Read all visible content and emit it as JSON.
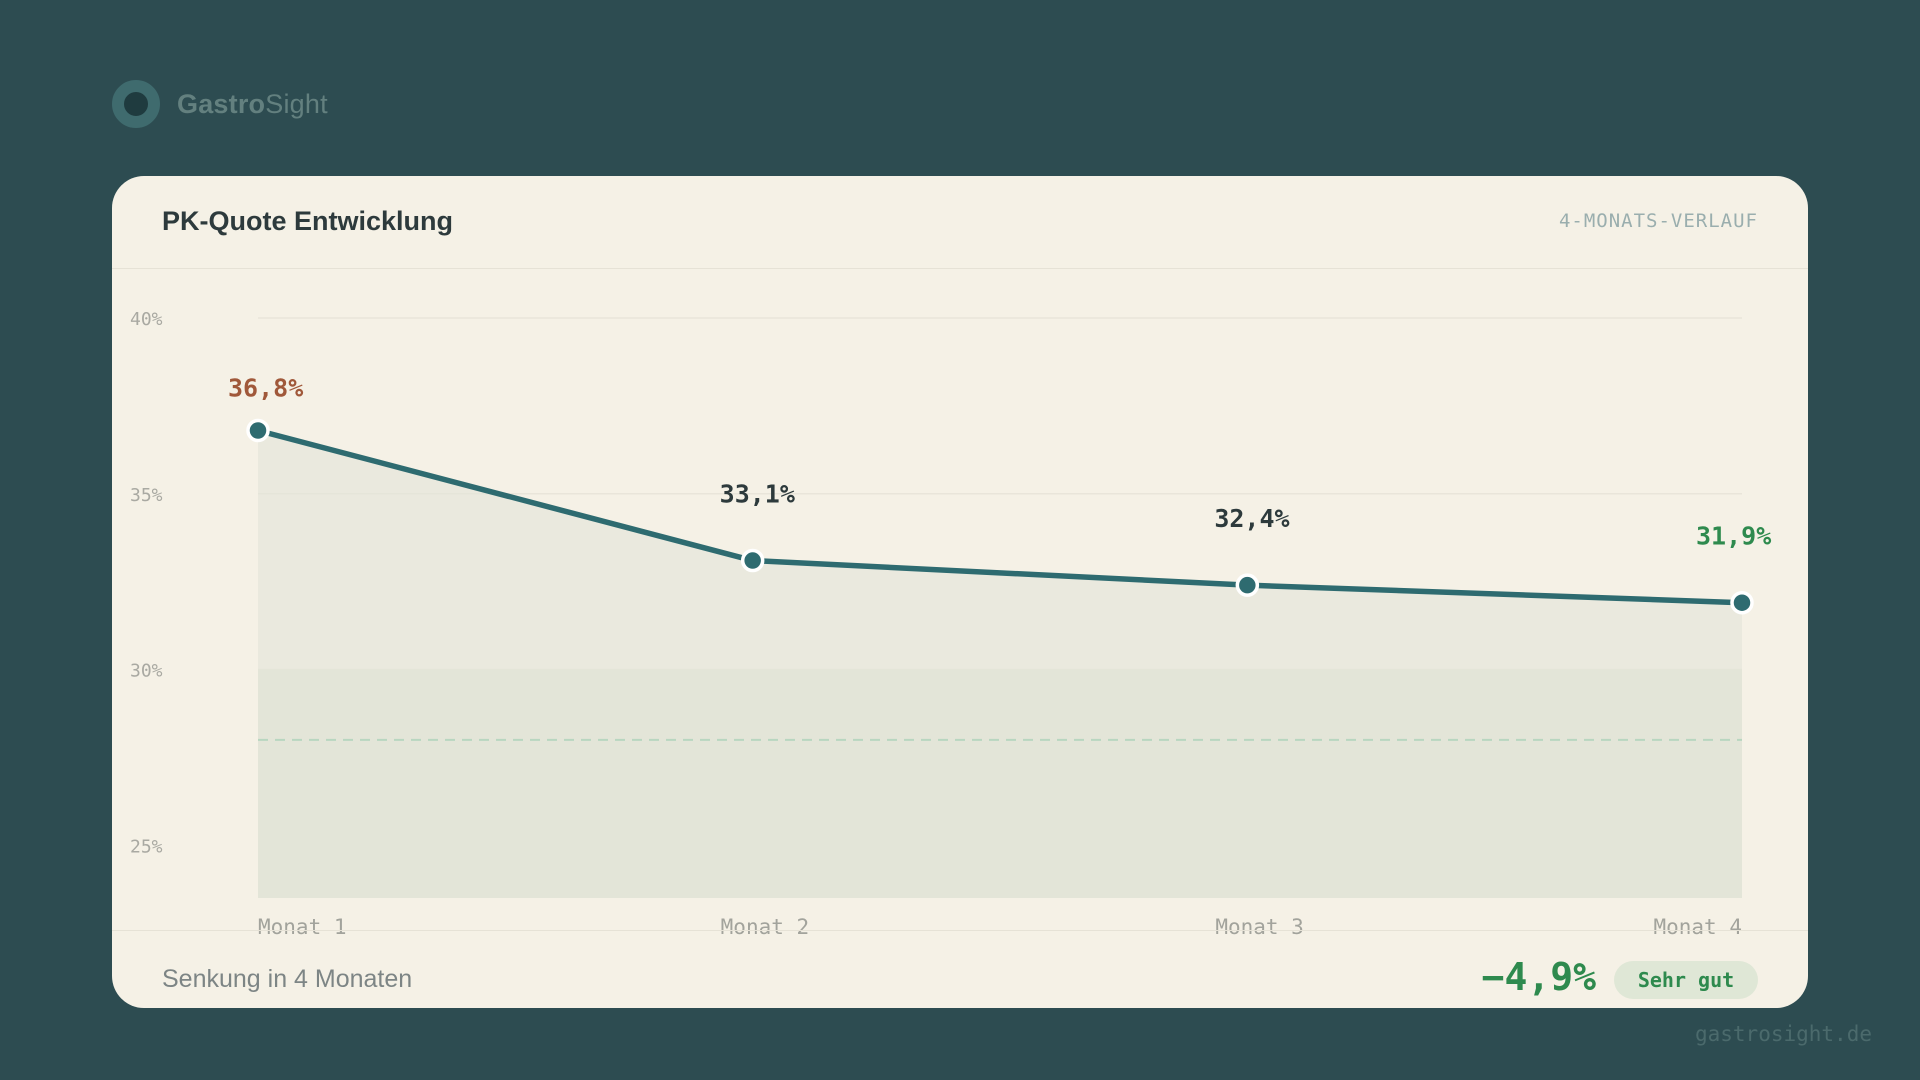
{
  "brand": {
    "name_strong": "Gastro",
    "name_light": "Sight"
  },
  "card": {
    "title": "PK-Quote Entwicklung",
    "subtitle": "4-MONATS-VERLAUF"
  },
  "footer": {
    "label": "Senkung in 4 Monaten",
    "value": "−4,9%",
    "badge": "Sehr gut"
  },
  "site": "gastrosight.de",
  "colors": {
    "background": "#2d4c51",
    "card": "#f5f1e6",
    "line": "#2e6b70",
    "high": "#a0583a",
    "good": "#2e8a4e",
    "neutral": "#2d3a3c"
  },
  "icons": {
    "brand_logo": "ring-logo-icon"
  },
  "chart_data": {
    "type": "line",
    "title": "PK-Quote Entwicklung",
    "subtitle": "4-MONATS-VERLAUF",
    "categories": [
      "Monat 1",
      "Monat 2",
      "Monat 3",
      "Monat 4"
    ],
    "series": [
      {
        "values": [
          36.8,
          33.1,
          32.4,
          31.9
        ],
        "labels": [
          "36,8%",
          "33,1%",
          "32,4%",
          "31,9%"
        ],
        "label_status": [
          "high",
          "neutral",
          "neutral",
          "good"
        ]
      }
    ],
    "ylim": [
      23.5,
      40
    ],
    "yticks": [
      40,
      35,
      30,
      25
    ],
    "ytick_labels": [
      "40%",
      "35%",
      "30%",
      "25%"
    ],
    "target_value": 28,
    "target_band": [
      23.5,
      30
    ],
    "grid": true,
    "area_fill": true
  }
}
